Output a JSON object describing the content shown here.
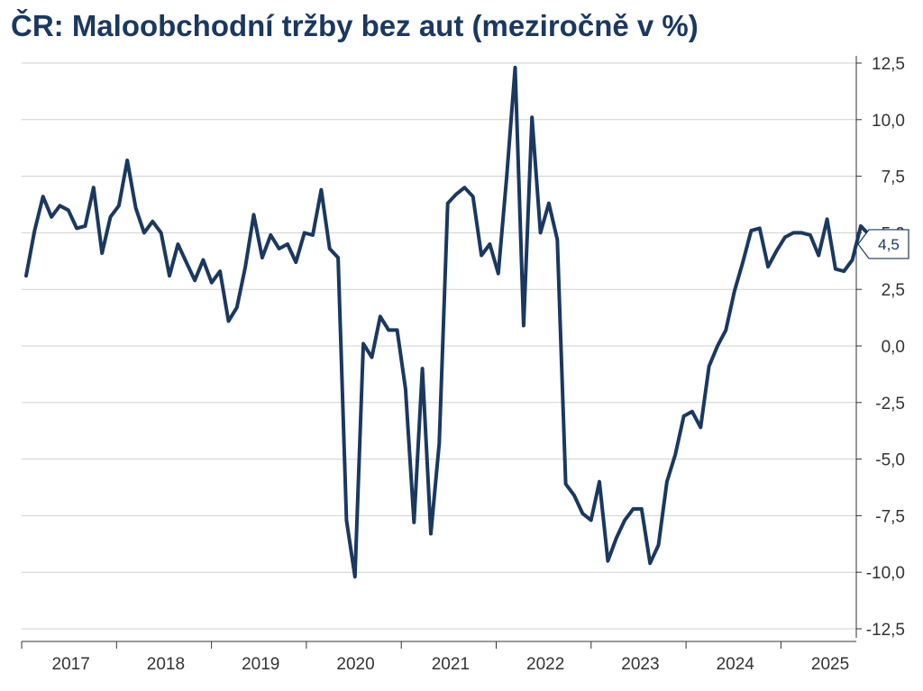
{
  "colors": {
    "series": "#1a3860",
    "grid": "#d0d0d0",
    "axis": "#333333",
    "title": "#1a3860"
  },
  "chart_data": {
    "type": "line",
    "title": "ČR: Maloobchodní tržby bez aut (meziročně v %)",
    "xlabel": "",
    "ylabel": "",
    "ylim": [
      -12.5,
      12.5
    ],
    "y_ticks": [
      12.5,
      10.0,
      7.5,
      5.0,
      2.5,
      0.0,
      -2.5,
      -5.0,
      -7.5,
      -10.0,
      -12.5
    ],
    "y_tick_labels": [
      "12,5",
      "10,0",
      "7,5",
      "5,0",
      "2,5",
      "0,0",
      "-2,5",
      "-5,0",
      "-7,5",
      "-10,0",
      "-12,5"
    ],
    "y_axis_side": "right",
    "grid": true,
    "x_categories": [
      "2017",
      "2018",
      "2019",
      "2020",
      "2021",
      "2022",
      "2023",
      "2024",
      "2025"
    ],
    "last_value_label": "4,5",
    "series": [
      {
        "start": "2017-01",
        "frequency": "monthly",
        "values": [
          3.1,
          5.1,
          6.6,
          5.7,
          6.2,
          6.0,
          5.2,
          5.3,
          7.0,
          4.1,
          5.7,
          6.2,
          8.2,
          6.1,
          5.0,
          5.5,
          5.0,
          3.1,
          4.5,
          3.7,
          2.9,
          3.8,
          2.8,
          3.3,
          1.1,
          1.7,
          3.5,
          5.8,
          3.9,
          4.9,
          4.3,
          4.5,
          3.7,
          5.0,
          4.9,
          6.9,
          4.3,
          3.9,
          -7.7,
          -10.2,
          0.1,
          -0.5,
          1.3,
          0.7,
          0.7,
          -1.9,
          -7.8,
          -1.0,
          -8.3,
          -4.3,
          6.3,
          6.7,
          7.0,
          6.6,
          4.0,
          4.5,
          3.2,
          7.5,
          12.3,
          0.9,
          10.1,
          5.0,
          6.3,
          4.7,
          -6.1,
          -6.6,
          -7.4,
          -7.7,
          -6.0,
          -9.5,
          -8.5,
          -7.7,
          -7.2,
          -7.2,
          -9.6,
          -8.8,
          -6.0,
          -4.8,
          -3.1,
          -2.9,
          -3.6,
          -0.9,
          0.0,
          0.7,
          2.4,
          3.7,
          5.1,
          5.2,
          3.5,
          4.2,
          4.8,
          5.0,
          5.0,
          4.9,
          4.0,
          5.6,
          3.4,
          3.3,
          3.8,
          5.3,
          4.9,
          4.5
        ]
      }
    ]
  }
}
